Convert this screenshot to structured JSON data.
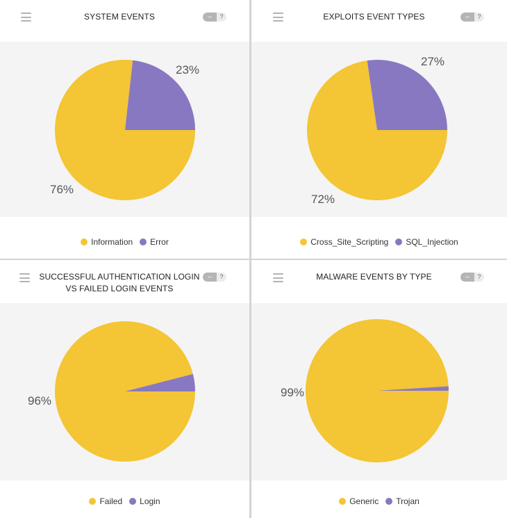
{
  "controls": {
    "minus": "–",
    "help": "?"
  },
  "colors": {
    "yellow": "#f4c534",
    "purple": "#8878c2"
  },
  "chart_data": [
    {
      "type": "pie",
      "title": "SYSTEM EVENTS",
      "categories": [
        "Information",
        "Error"
      ],
      "values": [
        76,
        23
      ],
      "labels": [
        "76%",
        "23%"
      ],
      "colors": [
        "#f4c534",
        "#8878c2"
      ],
      "legend": "bottom"
    },
    {
      "type": "pie",
      "title": "EXPLOITS EVENT TYPES",
      "categories": [
        "Cross_Site_Scripting",
        "SQL_Injection"
      ],
      "values": [
        72,
        27
      ],
      "labels": [
        "72%",
        "27%"
      ],
      "colors": [
        "#f4c534",
        "#8878c2"
      ],
      "legend": "bottom"
    },
    {
      "type": "pie",
      "title": "SUCCESSFUL AUTHENTICATION LOGIN VS FAILED LOGIN EVENTS",
      "categories": [
        "Failed",
        "Login"
      ],
      "values": [
        96,
        4
      ],
      "labels": [
        "96%",
        ""
      ],
      "colors": [
        "#f4c534",
        "#8878c2"
      ],
      "legend": "bottom"
    },
    {
      "type": "pie",
      "title": "MALWARE EVENTS BY TYPE",
      "categories": [
        "Generic",
        "Trojan"
      ],
      "values": [
        99,
        1
      ],
      "labels": [
        "99%",
        ""
      ],
      "colors": [
        "#f4c534",
        "#8878c2"
      ],
      "legend": "bottom"
    }
  ]
}
